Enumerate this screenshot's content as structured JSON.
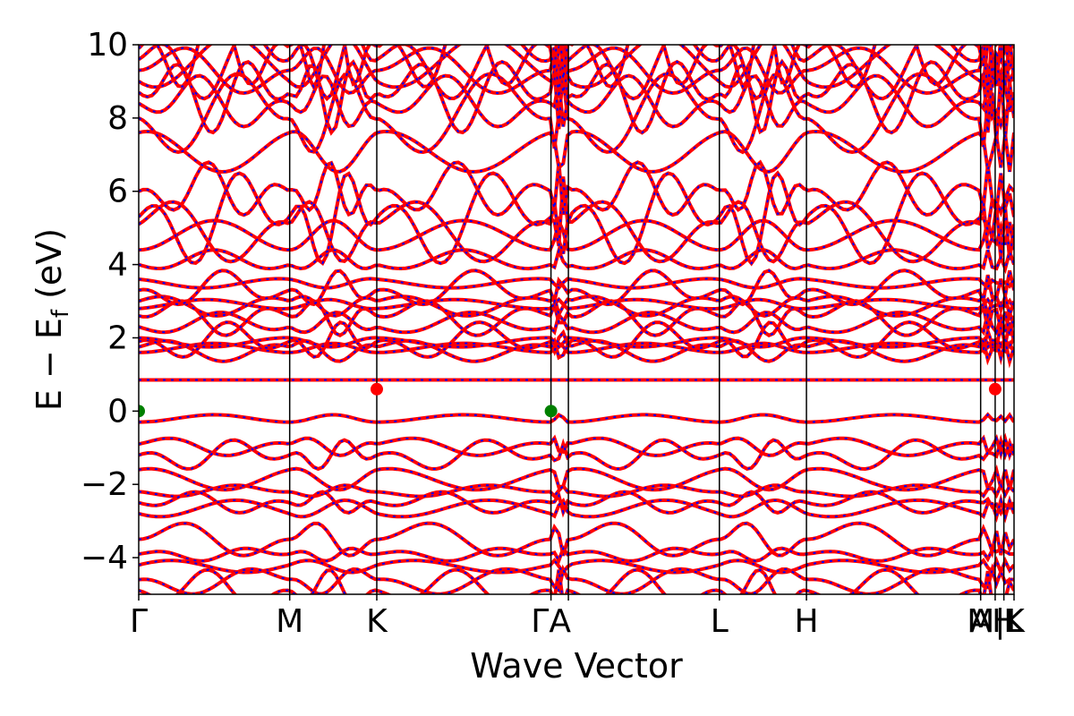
{
  "chart_data": {
    "type": "line",
    "title": "",
    "xlabel": "Wave Vector",
    "ylabel": "E − E",
    "ylabel_sub": "f",
    "ylabel_unit": " (eV)",
    "ylim": [
      -5,
      10
    ],
    "yticks": [
      {
        "value": 10,
        "label": "10"
      },
      {
        "value": 8,
        "label": "8"
      },
      {
        "value": 6,
        "label": "6"
      },
      {
        "value": 4,
        "label": "4"
      },
      {
        "value": 2,
        "label": "2"
      },
      {
        "value": 0,
        "label": "0"
      },
      {
        "value": -2,
        "label": "−2"
      },
      {
        "value": -4,
        "label": "−4"
      }
    ],
    "kpath_xlim": [
      0,
      6.03
    ],
    "kpoints": [
      {
        "label": "Γ",
        "x": 0.0
      },
      {
        "label": "M",
        "x": 1.04
      },
      {
        "label": "K",
        "x": 1.64
      },
      {
        "label": "ΓA",
        "x": 2.84
      },
      {
        "label": "",
        "x": 2.96
      },
      {
        "label": "L",
        "x": 4.0
      },
      {
        "label": "H",
        "x": 4.6
      },
      {
        "label": "A",
        "x": 5.8
      },
      {
        "label": "M|L",
        "x": 5.9
      },
      {
        "label": "H",
        "x": 5.96
      },
      {
        "label": "K",
        "x": 6.03
      }
    ],
    "series": [
      {
        "color": "#ff0000",
        "style": "solid"
      },
      {
        "color": "#0000ff",
        "style": "dashed"
      }
    ],
    "band_edges": {
      "vbm": [
        {
          "x": 0.0,
          "y": 0.0
        },
        {
          "x": 2.84,
          "y": 0.0
        }
      ],
      "cbm": [
        {
          "x": 1.64,
          "y": 0.6
        },
        {
          "x": 5.9,
          "y": 0.6
        }
      ],
      "vbm_color": "#008000",
      "cbm_color": "#ff0000"
    },
    "flat_band_energy": 0.85,
    "grid": false,
    "legend": "none"
  }
}
